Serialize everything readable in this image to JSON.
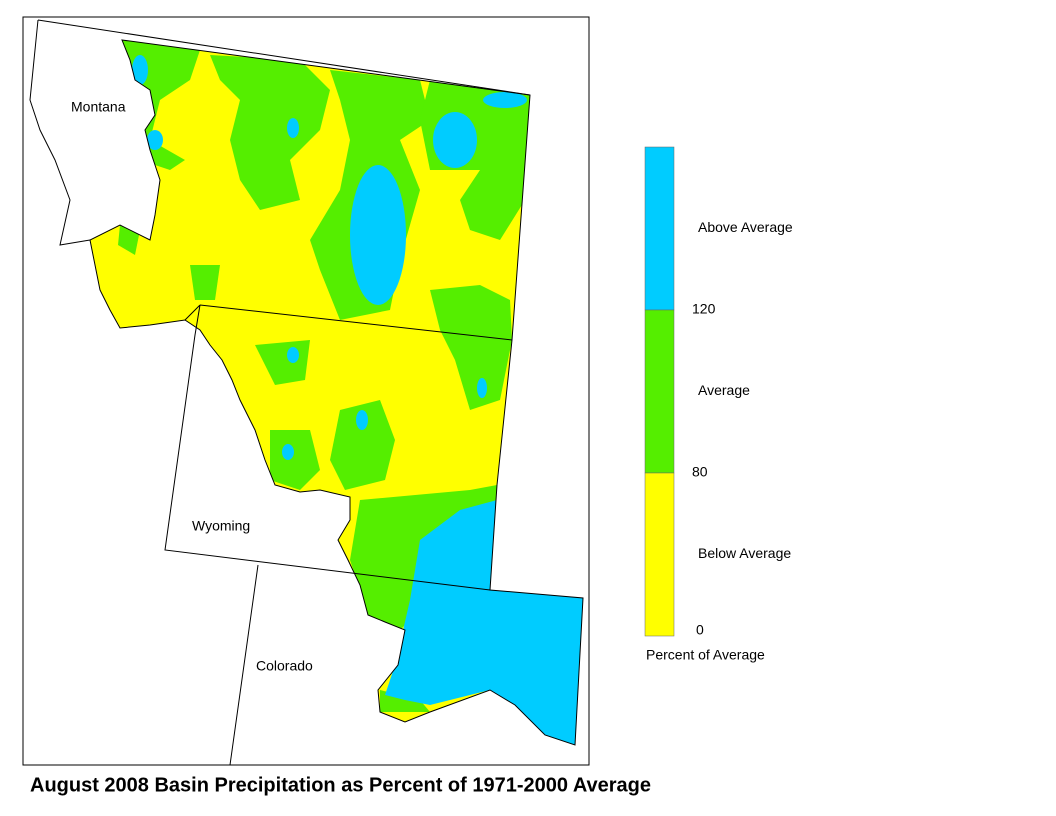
{
  "title": "August 2008 Basin Precipitation as Percent of 1971-2000 Average",
  "map": {
    "labels": [
      "Montana",
      "Wyoming",
      "Colorado"
    ]
  },
  "legend": {
    "title": "Percent of Average",
    "classes": [
      {
        "label": "Above Average",
        "color": "#00ccff"
      },
      {
        "label": "Average",
        "color": "#55ee00"
      },
      {
        "label": "Below Average",
        "color": "#ffff00"
      }
    ],
    "ticks": [
      120,
      80,
      0
    ]
  }
}
